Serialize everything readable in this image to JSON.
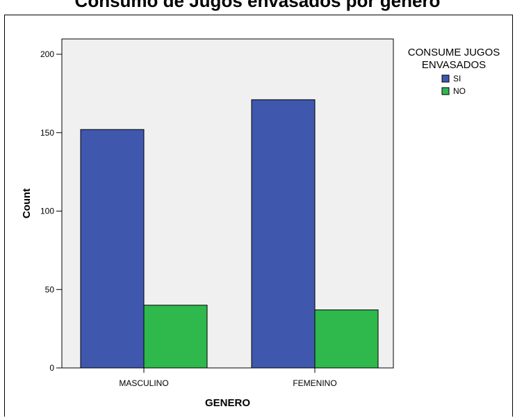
{
  "chart_data": {
    "type": "bar",
    "title": "Consumo de Jugos envasados por genero",
    "xlabel": "GENERO",
    "ylabel": "Count",
    "categories": [
      "MASCULINO",
      "FEMENINO"
    ],
    "series": [
      {
        "name": "SI",
        "values": [
          152,
          171
        ],
        "color": "#3f58ad"
      },
      {
        "name": "NO",
        "values": [
          40,
          37
        ],
        "color": "#2fb84c"
      }
    ],
    "ylim": [
      0,
      210
    ],
    "yticks": [
      0,
      50,
      100,
      150,
      200
    ],
    "legend": {
      "title_lines": [
        "CONSUME JUGOS",
        "ENVASADOS"
      ],
      "position": "right"
    },
    "plot_background": "#f0f0f0",
    "grid": false
  }
}
